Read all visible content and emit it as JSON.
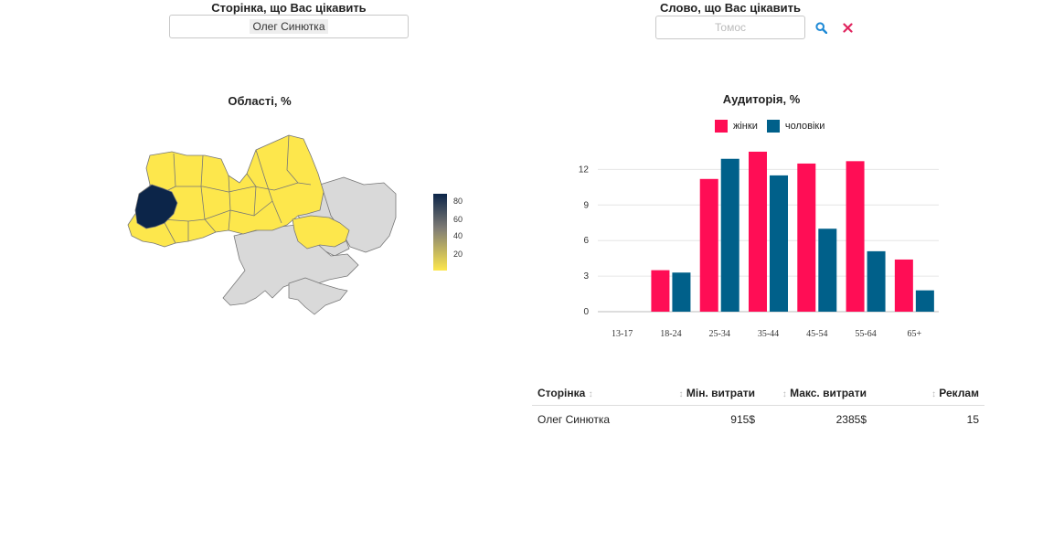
{
  "page_filter": {
    "label": "Сторінка, що Вас цікавить",
    "selected": "Олег Синютка"
  },
  "word_filter": {
    "label": "Слово, що Вас цікавить",
    "placeholder": "Томос",
    "search_icon": "search-icon",
    "clear_icon": "close-icon"
  },
  "map": {
    "title": "Області, %",
    "colorbar_ticks": [
      "80",
      "60",
      "40",
      "20"
    ],
    "colors": {
      "highlight": "#0c2549",
      "yellow": "#fde74c",
      "no_data": "#d9d9d9"
    }
  },
  "audience": {
    "title": "Аудиторія, %",
    "legend": {
      "women": "жінки",
      "men": "чоловіки"
    }
  },
  "chart_data": {
    "type": "bar",
    "title": "Аудиторія, %",
    "categories": [
      "13-17",
      "18-24",
      "25-34",
      "35-44",
      "45-54",
      "55-64",
      "65+"
    ],
    "series": [
      {
        "name": "жінки",
        "color": "#ff0d55",
        "values": [
          0,
          3.5,
          11.2,
          13.5,
          12.5,
          12.7,
          4.4
        ]
      },
      {
        "name": "чоловіки",
        "color": "#00608a",
        "values": [
          0,
          3.3,
          12.9,
          11.5,
          7.0,
          5.1,
          1.8
        ]
      }
    ],
    "yticks": [
      "0",
      "3",
      "6",
      "9",
      "12"
    ],
    "ylim": [
      0,
      14.5
    ],
    "grid": true,
    "legend_position": "top"
  },
  "table": {
    "columns": [
      {
        "label": "Сторінка",
        "sort_icon": "sort-icon"
      },
      {
        "label": "Мін. витрати",
        "sort_icon": "sort-icon"
      },
      {
        "label": "Макс. витрати",
        "sort_icon": "sort-icon"
      },
      {
        "label": "Реклам",
        "sort_icon": "sort-icon"
      }
    ],
    "rows": [
      {
        "page": "Олег Синютка",
        "min": "915$",
        "max": "2385$",
        "ads": "15"
      }
    ]
  }
}
